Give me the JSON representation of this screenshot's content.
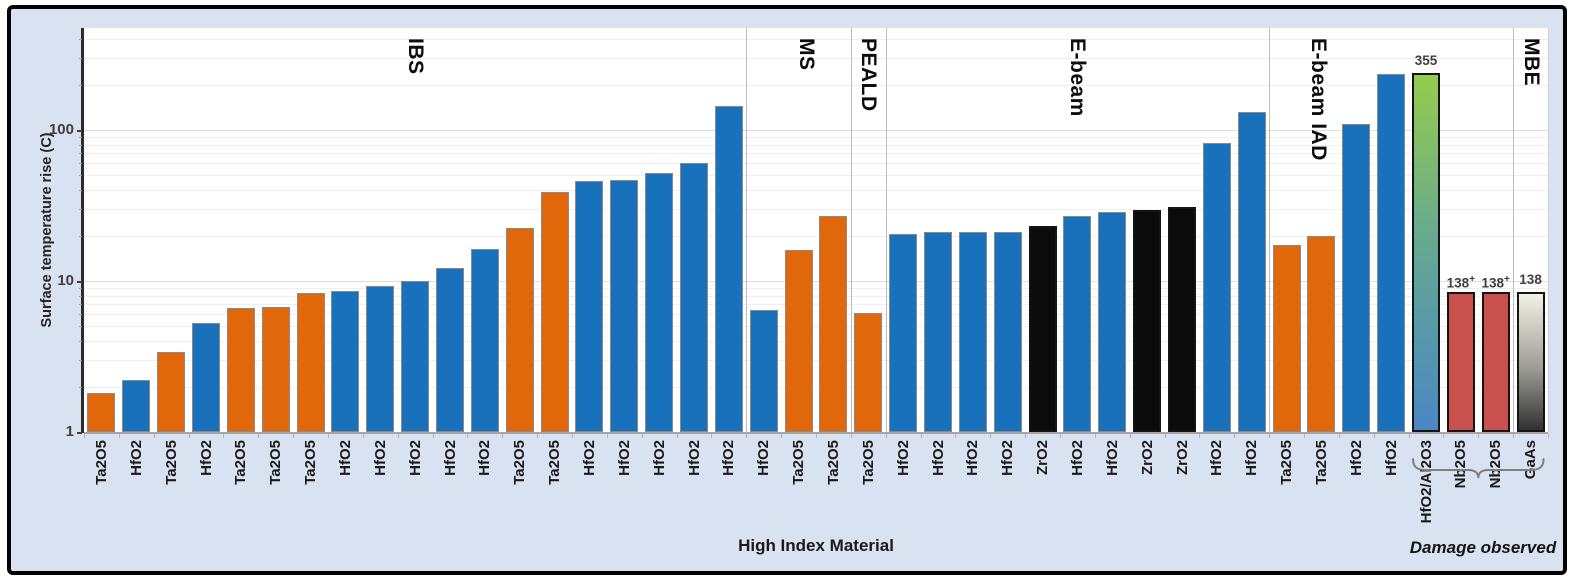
{
  "colors": {
    "figure_background": "#D9E2F1",
    "plot_background": "#FFFFFF",
    "blue": "#1971BB",
    "orange": "#E0680B",
    "black": "#0B0B0B",
    "red": "#C8504D",
    "green_gradient_top": "#95CC4D",
    "green_gradient_mid": "#64A893",
    "green_gradient_bottom": "#4B87C3",
    "gaas_gradient_top": "#F1F1E6",
    "gaas_gradient_mid": "#9C9C96",
    "gaas_gradient_bottom": "#303030",
    "bar_border_gray": "#8A8A8A",
    "bar_border_dark": "#141414",
    "grid_minor": "#EFEFEF",
    "grid_major": "#DEDEDE"
  },
  "chart_data": {
    "type": "bar",
    "title": "",
    "ylabel": "Surface temperature rise (C)",
    "xlabel": "High Index Material",
    "y_scale": "log",
    "ylim": [
      1,
      460
    ],
    "grid": true,
    "y_ticks": [
      {
        "label": "1",
        "value": 1
      },
      {
        "label": "10",
        "value": 10
      },
      {
        "label": "100",
        "value": 100
      }
    ],
    "sections": [
      {
        "name": "IBS",
        "bars": [
          {
            "material": "Ta2O5",
            "color": "orange",
            "value": 1.8
          },
          {
            "material": "HfO2",
            "color": "blue",
            "value": 2.2
          },
          {
            "material": "Ta2O5",
            "color": "orange",
            "value": 3.4
          },
          {
            "material": "HfO2",
            "color": "blue",
            "value": 5.3
          },
          {
            "material": "Ta2O5",
            "color": "orange",
            "value": 6.6
          },
          {
            "material": "Ta2O5",
            "color": "orange",
            "value": 6.7
          },
          {
            "material": "Ta2O5",
            "color": "orange",
            "value": 8.3
          },
          {
            "material": "HfO2",
            "color": "blue",
            "value": 8.6
          },
          {
            "material": "HfO2",
            "color": "blue",
            "value": 9.3
          },
          {
            "material": "HfO2",
            "color": "blue",
            "value": 10
          },
          {
            "material": "HfO2",
            "color": "blue",
            "value": 12.2
          },
          {
            "material": "HfO2",
            "color": "blue",
            "value": 16.3
          },
          {
            "material": "Ta2O5",
            "color": "orange",
            "value": 22.5
          },
          {
            "material": "Ta2O5",
            "color": "orange",
            "value": 39
          },
          {
            "material": "HfO2",
            "color": "blue",
            "value": 46
          },
          {
            "material": "HfO2",
            "color": "blue",
            "value": 47
          },
          {
            "material": "HfO2",
            "color": "blue",
            "value": 52
          },
          {
            "material": "HfO2",
            "color": "blue",
            "value": 60
          },
          {
            "material": "HfO2",
            "color": "blue",
            "value": 145
          }
        ]
      },
      {
        "name": "MS",
        "bars": [
          {
            "material": "HfO2",
            "color": "blue",
            "value": 6.4
          },
          {
            "material": "Ta2O5",
            "color": "orange",
            "value": 16
          },
          {
            "material": "Ta2O5",
            "color": "orange",
            "value": 27
          }
        ]
      },
      {
        "name": "PEALD",
        "bars": [
          {
            "material": "Ta2O5",
            "color": "orange",
            "value": 6.1
          }
        ]
      },
      {
        "name": "E-beam",
        "bars": [
          {
            "material": "HfO2",
            "color": "blue",
            "value": 20.5
          },
          {
            "material": "HfO2",
            "color": "blue",
            "value": 21
          },
          {
            "material": "HfO2",
            "color": "blue",
            "value": 21
          },
          {
            "material": "HfO2",
            "color": "blue",
            "value": 21
          },
          {
            "material": "ZrO2",
            "color": "black",
            "value": 23
          },
          {
            "material": "HfO2",
            "color": "blue",
            "value": 27
          },
          {
            "material": "HfO2",
            "color": "blue",
            "value": 28.5
          },
          {
            "material": "ZrO2",
            "color": "black",
            "value": 29.5
          },
          {
            "material": "ZrO2",
            "color": "black",
            "value": 31
          },
          {
            "material": "HfO2",
            "color": "blue",
            "value": 82
          },
          {
            "material": "HfO2",
            "color": "blue",
            "value": 132
          }
        ]
      },
      {
        "name": "E-beam IAD",
        "bars": [
          {
            "material": "Ta2O5",
            "color": "orange",
            "value": 17.3
          },
          {
            "material": "Ta2O5",
            "color": "orange",
            "value": 20
          },
          {
            "material": "HfO2",
            "color": "blue",
            "value": 110
          },
          {
            "material": "HfO2",
            "color": "blue",
            "value": 235
          },
          {
            "material": "HfO2/Al2O3",
            "color": "green_gradient",
            "value": 240,
            "annotation": "355"
          },
          {
            "material": "Nb2O5",
            "color": "red",
            "value": 8.5,
            "annotation": "138",
            "annotation_sup": "+"
          },
          {
            "material": "Nb2O5",
            "color": "red",
            "value": 8.5,
            "annotation": "138",
            "annotation_sup": "+"
          }
        ]
      },
      {
        "name": "MBE",
        "bars": [
          {
            "material": "GaAs",
            "color": "gaas_gradient",
            "value": 8.4,
            "annotation": "138"
          }
        ]
      }
    ],
    "damage_brace": {
      "label": "Damage observed",
      "from_material": "HfO2/Al2O3",
      "to_material": "GaAs"
    }
  }
}
